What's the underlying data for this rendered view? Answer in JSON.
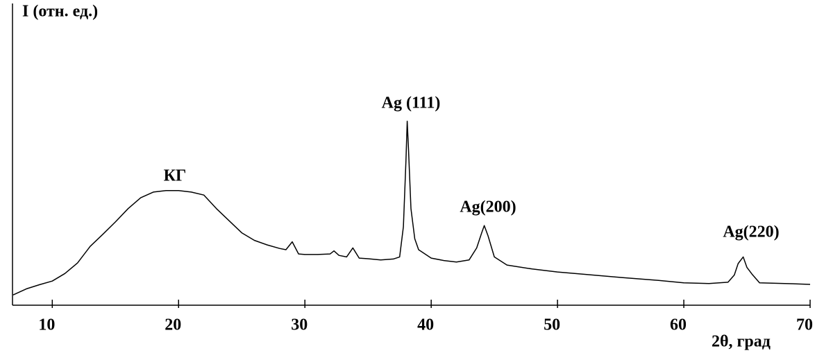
{
  "chart_data": {
    "type": "line",
    "title": "I (отн. ед.)",
    "x_label": "2θ, град",
    "annotations": [
      "КГ",
      "Ag (111)",
      "Ag(200)",
      "Ag(220)"
    ],
    "xlim": [
      6.85,
      70
    ],
    "xticks": [
      10,
      20,
      30,
      40,
      50,
      60,
      70
    ],
    "ylim": [
      0,
      100
    ],
    "series": [
      {
        "color": "#000000",
        "x": [
          6.9,
          8,
          9,
          10,
          11,
          12,
          13,
          14,
          15,
          16,
          17,
          18,
          19,
          20,
          21,
          22,
          23,
          24,
          25,
          26,
          27,
          28,
          28.5,
          29,
          29.5,
          30,
          31,
          32,
          32.3,
          32.7,
          33.3,
          33.8,
          34.3,
          35,
          36,
          37,
          37.5,
          37.8,
          38.0,
          38.1,
          38.2,
          38.4,
          38.7,
          39,
          40,
          41,
          42,
          43,
          43.6,
          44.0,
          44.2,
          44.5,
          45,
          46,
          48,
          50,
          52,
          55,
          58,
          60,
          62,
          63.5,
          64.0,
          64.3,
          64.7,
          65.0,
          65.4,
          66,
          68,
          70
        ],
        "values": [
          3.4,
          5.5,
          6.8,
          8,
          10.5,
          14,
          19.5,
          23.5,
          27.6,
          32,
          35.6,
          37.5,
          38,
          38,
          37.5,
          36.5,
          32,
          28,
          24,
          21.5,
          20,
          18.8,
          18.4,
          21,
          17,
          16.8,
          16.8,
          17,
          18,
          16.5,
          16,
          19,
          15.6,
          15.4,
          15,
          15.3,
          16,
          26,
          48,
          61,
          52,
          32,
          22,
          18.4,
          15.6,
          14.8,
          14.3,
          15,
          19,
          24,
          26.4,
          23,
          16,
          13.3,
          12,
          11,
          10.3,
          9.2,
          8.2,
          7.4,
          7.2,
          7.6,
          10,
          13.8,
          16,
          12.5,
          10.3,
          7.4,
          7.2,
          6.9
        ]
      }
    ]
  }
}
